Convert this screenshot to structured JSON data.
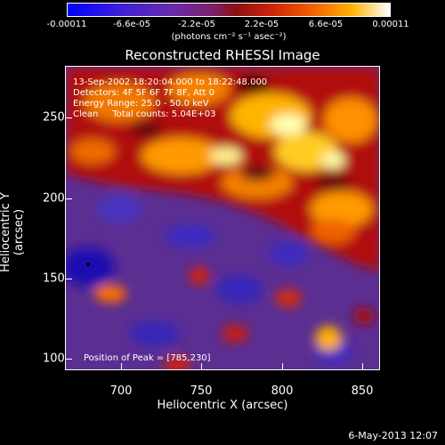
{
  "colorbar": {
    "ticks": [
      "-0.00011",
      "-6.6e-05",
      "-2.2e-05",
      "2.2e-05",
      "6.6e-05",
      "0.00011"
    ],
    "unit": "(photons cm⁻² s⁻¹ asec⁻²)"
  },
  "title": "Reconstructed RHESSI Image",
  "info": {
    "time": "13-Sep-2002 18:20:04.000 to 18:22:48.000",
    "detectors": "Detectors: 4F 5F 6F 7F 8F, Att 0",
    "energy": "Energy Range: 25.0 - 50.0 keV",
    "clean": "Clean     Total counts: 5.04E+03"
  },
  "peak": "Position of Peak = [785,230]",
  "axes": {
    "xlabel": "Heliocentric X (arcsec)",
    "ylabel": "Heliocentric Y (arcsec)",
    "xticks": [
      "700",
      "750",
      "800",
      "850"
    ],
    "yticks": [
      "250",
      "200",
      "150",
      "100"
    ]
  },
  "footer_date": "6-May-2013 12:07",
  "colors": {
    "background": "#000000",
    "map_low": "#5a2a8a",
    "map_high": "#ffffff"
  }
}
